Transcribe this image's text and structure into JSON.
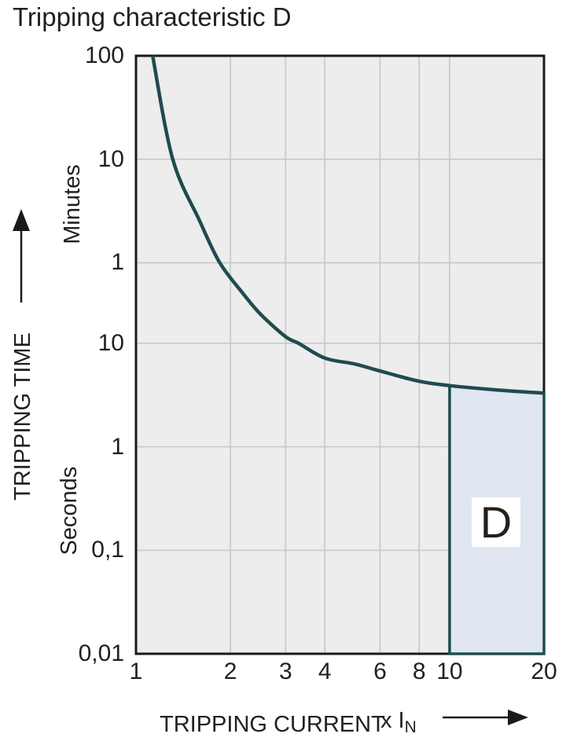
{
  "chart_data": {
    "type": "line",
    "title": "Tripping characteristic D",
    "grid": true,
    "background_color": "#ededed",
    "grid_color": "#c8c8c8",
    "border_color": "#1a1a1a",
    "text_color": "#231f20",
    "x_axis": {
      "label": "TRIPPING CURRENT",
      "unit": "x I",
      "unit_subscript": "N",
      "scale": "log",
      "min": 1,
      "max": 20,
      "ticks": [
        {
          "label": "1",
          "value": 1
        },
        {
          "label": "2",
          "value": 2
        },
        {
          "label": "3",
          "value": 3
        },
        {
          "label": "4",
          "value": 4
        },
        {
          "label": "6",
          "value": 6
        },
        {
          "label": "8",
          "value": 8
        },
        {
          "label": "10",
          "value": 10
        },
        {
          "label": "20",
          "value": 20
        }
      ],
      "grid_values": [
        2,
        3,
        4,
        6,
        8,
        10
      ]
    },
    "y_axis": {
      "label": "TRIPPING TIME",
      "unit_top": "Minutes",
      "unit_bottom": "Seconds",
      "scale": "log",
      "min_seconds": 0.01,
      "max_seconds": 6000,
      "ticks": [
        {
          "label": "100",
          "seconds": 6000
        },
        {
          "label": "10",
          "seconds": 600
        },
        {
          "label": "1",
          "seconds": 60
        },
        {
          "label": "10",
          "seconds": 10
        },
        {
          "label": "1",
          "seconds": 1
        },
        {
          "label": "0,1",
          "seconds": 0.1
        },
        {
          "label": "0,01",
          "seconds": 0.01
        }
      ],
      "grid_seconds": [
        600,
        60,
        10,
        1,
        0.1
      ]
    },
    "series": [
      {
        "name": "tripping-curve",
        "color": "#1e4c4f",
        "stroke_width": 4.5,
        "points_x_tseconds": [
          [
            1.13,
            6000
          ],
          [
            1.31,
            600
          ],
          [
            1.6,
            150
          ],
          [
            1.85,
            60
          ],
          [
            2.2,
            30
          ],
          [
            2.5,
            19
          ],
          [
            3.0,
            11.6
          ],
          [
            3.3,
            10
          ],
          [
            4.0,
            7.2
          ],
          [
            5.0,
            6.3
          ],
          [
            6.0,
            5.4
          ],
          [
            8.0,
            4.3
          ],
          [
            10.0,
            3.9
          ],
          [
            14.0,
            3.55
          ],
          [
            20.0,
            3.3
          ]
        ]
      }
    ],
    "region": {
      "label": "D",
      "x_from": 10,
      "x_to": 20,
      "bottom_seconds": 0.01,
      "top_boundary": "curve",
      "fill": "#e0e6f2",
      "border": "#1e4c4f"
    }
  }
}
